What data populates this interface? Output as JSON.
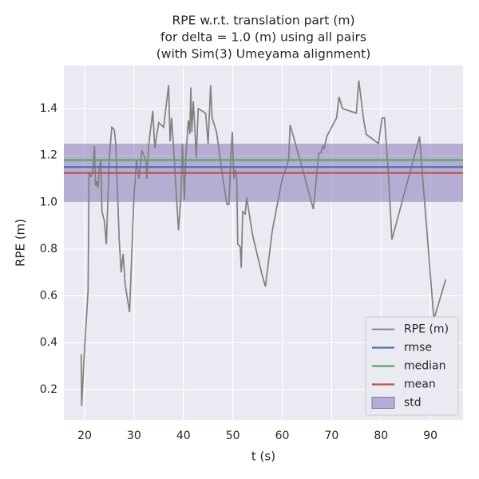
{
  "chart_data": {
    "type": "line",
    "title": [
      "RPE w.r.t. translation part (m)",
      "for delta = 1.0 (m) using all pairs",
      "(with Sim(3) Umeyama alignment)"
    ],
    "x_label": "t (s)",
    "y_label": "RPE (m)",
    "x": [
      19.3,
      19.4,
      20,
      20.7,
      20.9,
      21.3,
      21.6,
      22,
      22.2,
      22.5,
      22.7,
      23,
      23.3,
      23.5,
      24,
      24.4,
      25,
      25.5,
      26,
      26.3,
      27,
      27.4,
      27.8,
      28.2,
      29.1,
      30,
      30.5,
      31,
      31.6,
      32.4,
      32.6,
      33,
      33.8,
      34.2,
      35,
      36,
      37,
      37.3,
      37.6,
      38.1,
      39,
      39.5,
      39.8,
      40.2,
      40.5,
      41,
      41.3,
      41.5,
      41.7,
      42,
      42.3,
      42.6,
      43,
      44.5,
      45,
      45.5,
      45.8,
      46.7,
      48,
      48.8,
      49.2,
      49.6,
      49.9,
      50.2,
      50.5,
      50.8,
      51,
      51.5,
      51.7,
      52,
      52.5,
      52.8,
      54,
      55.8,
      56.6,
      58,
      60,
      61.3,
      61.6,
      62,
      64,
      66.3,
      67.4,
      67.8,
      68.2,
      68.5,
      69,
      71,
      71.5,
      72.2,
      75,
      75.5,
      76.5,
      77,
      79.5,
      80.2,
      80.7,
      81.5,
      82.2,
      87.8,
      88,
      90.7,
      93.1
    ],
    "series": [
      {
        "name": "RPE (m)",
        "color": "#808080",
        "values": [
          0.35,
          0.13,
          0.38,
          0.62,
          1.12,
          1.11,
          1.13,
          1.24,
          1.07,
          1.09,
          1.06,
          1.15,
          1.18,
          0.96,
          0.92,
          0.82,
          1.19,
          1.32,
          1.31,
          1.25,
          0.84,
          0.7,
          0.78,
          0.65,
          0.53,
          1.03,
          1.18,
          1.1,
          1.22,
          1.18,
          1.1,
          1.25,
          1.39,
          1.23,
          1.34,
          1.32,
          1.5,
          1.26,
          1.36,
          1.2,
          0.88,
          1.03,
          1.25,
          1.01,
          1.2,
          1.35,
          1.29,
          1.49,
          1.3,
          1.43,
          1.32,
          1.19,
          1.4,
          1.38,
          1.25,
          1.5,
          1.36,
          1.3,
          1.1,
          0.99,
          0.99,
          1.2,
          1.3,
          1.1,
          1.14,
          1.1,
          0.82,
          0.81,
          0.72,
          0.96,
          0.95,
          1.02,
          0.86,
          0.7,
          0.64,
          0.88,
          1.1,
          1.18,
          1.33,
          1.3,
          1.15,
          0.97,
          1.21,
          1.21,
          1.24,
          1.23,
          1.28,
          1.36,
          1.45,
          1.4,
          1.38,
          1.52,
          1.35,
          1.29,
          1.25,
          1.36,
          1.36,
          1.12,
          0.84,
          1.28,
          1.22,
          0.5,
          0.67
        ]
      }
    ],
    "stats": [
      {
        "name": "rmse",
        "color": "#4c72b0",
        "value": 1.15
      },
      {
        "name": "median",
        "color": "#55a868",
        "value": 1.18
      },
      {
        "name": "mean",
        "color": "#c44e52",
        "value": 1.125
      }
    ],
    "std": {
      "name": "std",
      "color": "#8172b2",
      "value": 0.125
    },
    "xlim": [
      15.8,
      96.6
    ],
    "ylim": [
      0.07,
      1.584
    ],
    "xticks": [
      20,
      30,
      40,
      50,
      60,
      70,
      80,
      90
    ],
    "yticks": [
      0.2,
      0.4,
      0.6,
      0.8,
      {
        "value": 1,
        "label": "1.0"
      },
      1.2,
      1.4
    ],
    "grid": true,
    "legend": "lower right"
  }
}
